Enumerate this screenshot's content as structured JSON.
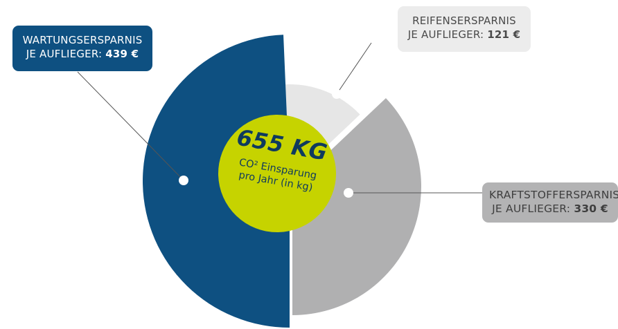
{
  "chart_data": {
    "type": "pie",
    "categories": [
      "WARTUNGSERSPARNIS",
      "REIFENSERSPARNIS",
      "KRAFTSTOFFERSPARNIS"
    ],
    "values": [
      439,
      121,
      330
    ],
    "unit": "€",
    "colors": [
      "#0e5081",
      "#e6e6e6",
      "#b0b0b1"
    ],
    "center": {
      "value": "655 KG",
      "caption": "CO² Einsparung pro Jahr (in kg)"
    }
  },
  "callouts": {
    "wartung": {
      "line1": "WARTUNGSERSPARNIS",
      "line2_prefix": "JE AUFLIEGER: ",
      "amount": "439 €"
    },
    "reifen": {
      "line1": "REIFENSERSPARNIS",
      "line2_prefix": "JE AUFLIEGER: ",
      "amount": "121 €"
    },
    "kraft": {
      "line1": "KRAFTSTOFFERSPARNIS",
      "line2_prefix": "JE AUFLIEGER: ",
      "amount": "330 €"
    }
  }
}
